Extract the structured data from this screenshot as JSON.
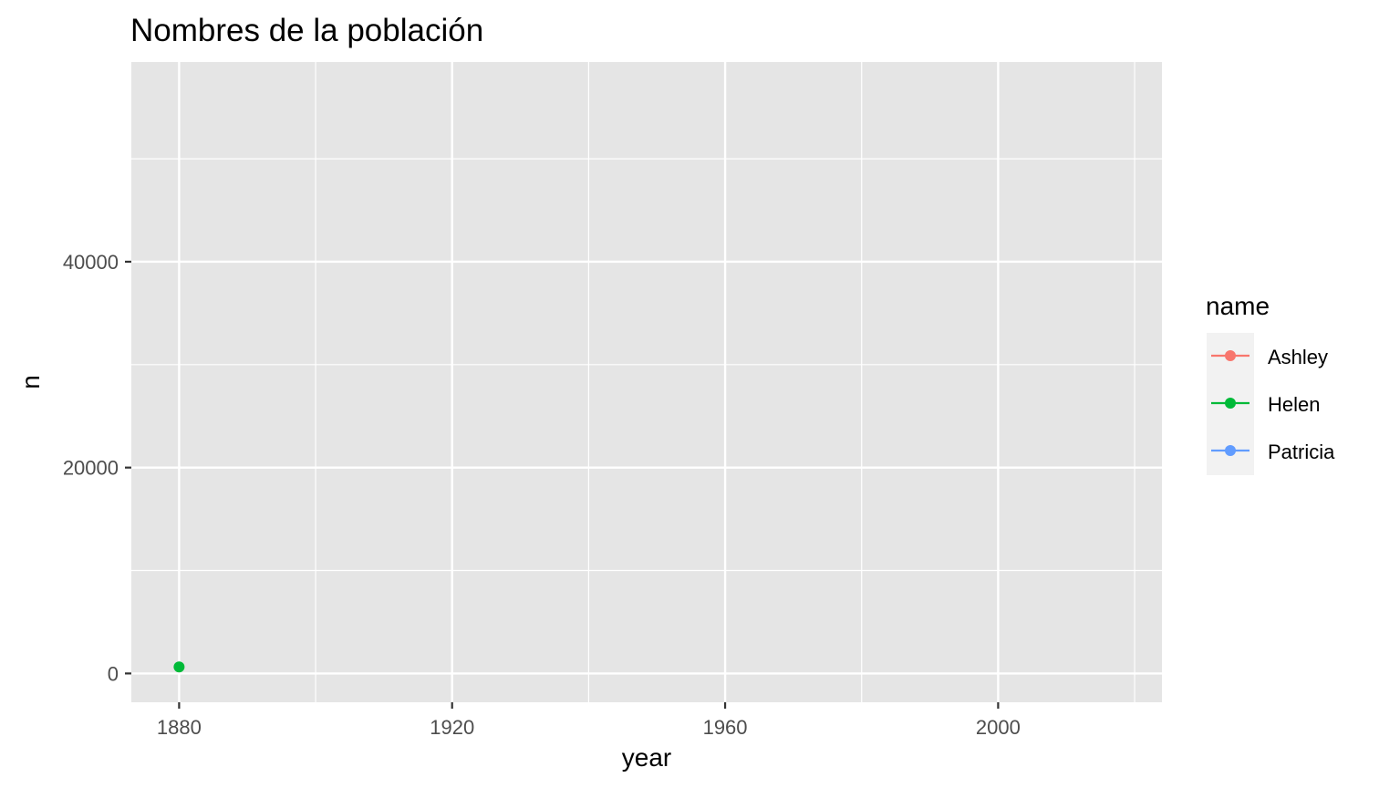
{
  "chart_data": {
    "type": "line",
    "title": "Nombres de la población",
    "xlabel": "year",
    "ylabel": "n",
    "xlim": [
      1873,
      2024
    ],
    "ylim": [
      -2800,
      59400
    ],
    "x_ticks": [
      1880,
      1920,
      1960,
      2000
    ],
    "x_minor_ticks": [
      1900,
      1940,
      1980,
      2020
    ],
    "y_ticks": [
      0,
      20000,
      40000
    ],
    "y_minor_ticks": [
      10000,
      30000,
      50000
    ],
    "grid": true,
    "legend": {
      "title": "name",
      "placement": "right"
    },
    "series": [
      {
        "name": "Ashley",
        "color": "#F8766D",
        "points": []
      },
      {
        "name": "Helen",
        "color": "#00BA38",
        "points": [
          {
            "x": 1880,
            "y": 636
          }
        ]
      },
      {
        "name": "Patricia",
        "color": "#619CFF",
        "points": []
      }
    ]
  }
}
